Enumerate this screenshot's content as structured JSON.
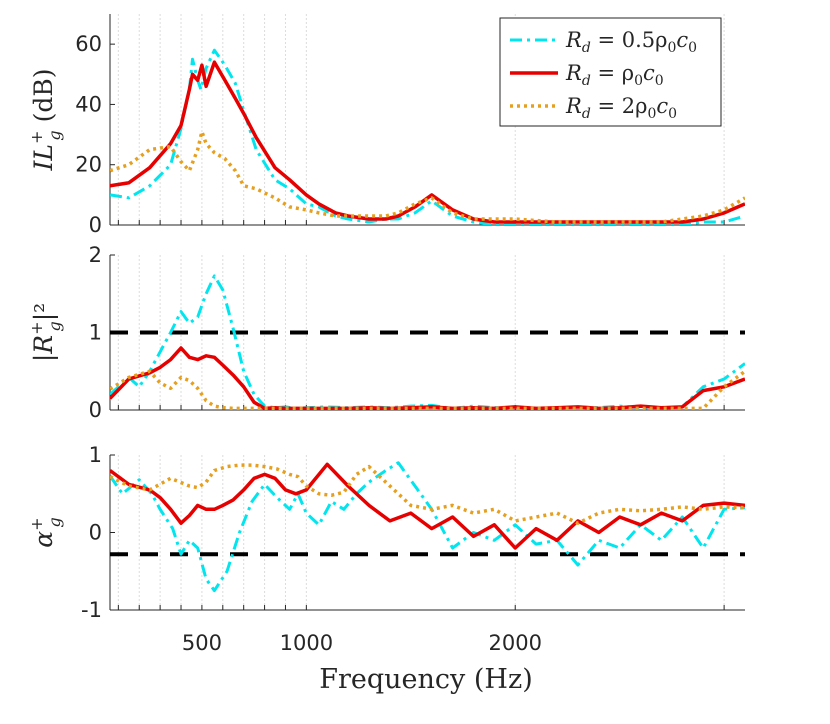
{
  "chart_data": [
    {
      "type": "line",
      "panel": "top",
      "ylabel": {
        "main": "IL",
        "sup": "+",
        "sub": "g",
        "tail": " (dB)"
      },
      "ylim": [
        0,
        70
      ],
      "yticks": [
        0,
        20,
        40,
        60
      ],
      "xlim": [
        60,
        3100
      ],
      "grid": true,
      "legend": {
        "placement": "top-right",
        "entries": [
          {
            "series": 0,
            "pre": "R",
            "sub": "d",
            "post": " = 0.5ρ",
            "sub2": "0",
            "post2": "c",
            "sub3": "0"
          },
          {
            "series": 1,
            "pre": "R",
            "sub": "d",
            "post": " = ρ",
            "sub2": "0",
            "post2": "c",
            "sub3": "0"
          },
          {
            "series": 2,
            "pre": "R",
            "sub": "d",
            "post": " = 2ρ",
            "sub2": "0",
            "post2": "c",
            "sub3": "0"
          }
        ]
      },
      "series": [
        {
          "x": [
            60,
            150,
            250,
            350,
            400,
            440,
            455,
            480,
            495,
            520,
            560,
            610,
            660,
            700,
            760,
            850,
            920,
            1000,
            1060,
            1140,
            1200,
            1300,
            1380,
            1440,
            1520,
            1600,
            1700,
            1800,
            1900,
            2000,
            2200,
            2300,
            2400,
            2500,
            2600,
            2700,
            2800,
            2900,
            3000,
            3100
          ],
          "y": [
            10,
            9,
            13,
            20,
            32,
            45,
            55,
            48,
            45,
            52,
            58,
            53,
            47,
            38,
            25,
            15,
            12,
            7,
            6,
            3,
            2,
            1,
            2,
            2,
            4,
            8,
            3,
            1,
            0,
            0,
            0,
            0,
            0,
            0,
            0,
            0,
            0,
            1,
            1,
            3
          ]
        },
        {
          "x": [
            60,
            150,
            250,
            350,
            400,
            440,
            455,
            480,
            500,
            520,
            560,
            610,
            660,
            700,
            760,
            850,
            920,
            1000,
            1060,
            1140,
            1200,
            1300,
            1380,
            1440,
            1520,
            1600,
            1700,
            1800,
            1900,
            2000,
            2200,
            2300,
            2400,
            2500,
            2600,
            2700,
            2800,
            2900,
            3000,
            3100
          ],
          "y": [
            13,
            14,
            19,
            27,
            33,
            45,
            50,
            48,
            53,
            46,
            54,
            48,
            42,
            37,
            29,
            19,
            15,
            10,
            7,
            4,
            3,
            2,
            2,
            3,
            6,
            10,
            5,
            2,
            1,
            1,
            1,
            1,
            1,
            1,
            1,
            1,
            1,
            2,
            4,
            7
          ]
        },
        {
          "x": [
            60,
            150,
            250,
            350,
            400,
            440,
            480,
            500,
            520,
            560,
            610,
            660,
            700,
            760,
            850,
            920,
            1000,
            1060,
            1140,
            1200,
            1300,
            1380,
            1440,
            1520,
            1600,
            1700,
            1800,
            1900,
            2000,
            2200,
            2300,
            2400,
            2500,
            2600,
            2700,
            2800,
            2900,
            3000,
            3100
          ],
          "y": [
            18,
            20,
            25,
            26,
            21,
            18,
            25,
            31,
            27,
            24,
            22,
            18,
            13,
            12,
            9,
            6,
            5,
            4,
            3,
            3,
            3,
            3,
            4,
            7,
            9,
            4,
            2,
            2,
            2,
            1,
            1,
            1,
            1,
            1,
            1,
            2,
            3,
            5,
            9
          ]
        }
      ]
    },
    {
      "type": "line",
      "panel": "middle",
      "ylabel": {
        "main": "|R",
        "sup": "+",
        "sub": "g",
        "tail": "|²"
      },
      "ylim": [
        0,
        2
      ],
      "yticks": [
        0,
        1,
        2
      ],
      "xlim": [
        60,
        3100
      ],
      "grid": true,
      "reference_line": 1,
      "series": [
        {
          "x": [
            60,
            150,
            200,
            250,
            300,
            350,
            400,
            440,
            480,
            520,
            560,
            600,
            650,
            700,
            750,
            800,
            850,
            900,
            950,
            1000,
            1100,
            1200,
            1300,
            1400,
            1500,
            1600,
            1700,
            1800,
            1900,
            2000,
            2100,
            2200,
            2300,
            2400,
            2500,
            2600,
            2700,
            2800,
            2900,
            3000,
            3100
          ],
          "y": [
            0.2,
            0.42,
            0.3,
            0.5,
            0.75,
            1.0,
            1.27,
            1.12,
            1.2,
            1.5,
            1.73,
            1.55,
            1.05,
            0.5,
            0.2,
            0.05,
            0.03,
            0.04,
            0.02,
            0.03,
            0.04,
            0.03,
            0.04,
            0.03,
            0.05,
            0.06,
            0.02,
            0.05,
            0.03,
            0.04,
            0.02,
            0.03,
            0.04,
            0.03,
            0.05,
            0.03,
            0.02,
            0.04,
            0.3,
            0.4,
            0.6
          ]
        },
        {
          "x": [
            60,
            150,
            250,
            300,
            350,
            400,
            440,
            480,
            520,
            560,
            600,
            650,
            700,
            750,
            800,
            850,
            900,
            1000,
            1100,
            1200,
            1300,
            1400,
            1500,
            1600,
            1700,
            1800,
            1900,
            2000,
            2100,
            2200,
            2300,
            2400,
            2500,
            2600,
            2700,
            2800,
            2900,
            3000,
            3100
          ],
          "y": [
            0.15,
            0.4,
            0.48,
            0.55,
            0.65,
            0.8,
            0.68,
            0.65,
            0.7,
            0.68,
            0.58,
            0.45,
            0.3,
            0.1,
            0.02,
            0.03,
            0.02,
            0.02,
            0.02,
            0.02,
            0.03,
            0.02,
            0.03,
            0.04,
            0.02,
            0.03,
            0.02,
            0.04,
            0.02,
            0.03,
            0.04,
            0.02,
            0.03,
            0.05,
            0.03,
            0.04,
            0.25,
            0.3,
            0.4
          ]
        },
        {
          "x": [
            60,
            150,
            250,
            300,
            350,
            400,
            440,
            480,
            520,
            560,
            600,
            650,
            700,
            750,
            800,
            900,
            1000,
            1100,
            1200,
            1300,
            1400,
            1500,
            1600,
            1700,
            1800,
            1900,
            2000,
            2100,
            2200,
            2300,
            2400,
            2500,
            2600,
            2700,
            2800,
            2900,
            3000,
            3100
          ],
          "y": [
            0.27,
            0.42,
            0.5,
            0.35,
            0.28,
            0.42,
            0.38,
            0.28,
            0.12,
            0.05,
            0.03,
            0.02,
            0.02,
            0.02,
            0.02,
            0.02,
            0.02,
            0.02,
            0.02,
            0.02,
            0.02,
            0.02,
            0.02,
            0.02,
            0.02,
            0.02,
            0.02,
            0.02,
            0.02,
            0.02,
            0.02,
            0.02,
            0.02,
            0.02,
            0.02,
            0.02,
            0.3,
            0.5
          ]
        }
      ]
    },
    {
      "type": "line",
      "panel": "bottom",
      "ylabel": {
        "main": "α",
        "sup": "+",
        "sub": "g",
        "tail": ""
      },
      "ylim": [
        -1,
        1
      ],
      "yticks": [
        -1,
        0,
        1
      ],
      "xlim": [
        60,
        3100
      ],
      "grid": true,
      "reference_line": -0.28,
      "series": [
        {
          "x": [
            60,
            120,
            200,
            260,
            300,
            360,
            400,
            440,
            480,
            520,
            560,
            620,
            680,
            740,
            800,
            860,
            920,
            960,
            1000,
            1060,
            1120,
            1180,
            1240,
            1300,
            1380,
            1440,
            1520,
            1600,
            1700,
            1800,
            1900,
            2000,
            2100,
            2200,
            2300,
            2400,
            2500,
            2600,
            2700,
            2800,
            2900,
            3000,
            3100
          ],
          "y": [
            0.73,
            0.5,
            0.68,
            0.5,
            0.3,
            0.05,
            -0.28,
            -0.1,
            -0.2,
            -0.6,
            -0.75,
            -0.5,
            0.0,
            0.4,
            0.62,
            0.45,
            0.3,
            0.5,
            0.25,
            0.1,
            0.4,
            0.3,
            0.5,
            0.65,
            0.8,
            0.9,
            0.6,
            0.3,
            -0.2,
            0.0,
            -0.1,
            0.1,
            -0.15,
            -0.1,
            -0.42,
            -0.1,
            -0.2,
            0.1,
            -0.1,
            0.2,
            -0.2,
            0.3,
            0.32
          ]
        },
        {
          "x": [
            60,
            150,
            250,
            300,
            350,
            400,
            440,
            480,
            520,
            560,
            600,
            650,
            700,
            750,
            800,
            850,
            900,
            950,
            1000,
            1100,
            1200,
            1300,
            1400,
            1500,
            1600,
            1700,
            1800,
            1900,
            2000,
            2100,
            2200,
            2300,
            2400,
            2500,
            2600,
            2700,
            2800,
            2900,
            3000,
            3100
          ],
          "y": [
            0.8,
            0.62,
            0.55,
            0.45,
            0.3,
            0.12,
            0.22,
            0.35,
            0.3,
            0.3,
            0.35,
            0.42,
            0.55,
            0.7,
            0.75,
            0.7,
            0.55,
            0.5,
            0.55,
            0.88,
            0.6,
            0.35,
            0.15,
            0.25,
            0.05,
            0.2,
            -0.05,
            0.1,
            -0.2,
            0.05,
            -0.1,
            0.15,
            0.0,
            0.2,
            0.1,
            0.25,
            0.15,
            0.35,
            0.38,
            0.35
          ]
        },
        {
          "x": [
            60,
            150,
            250,
            350,
            440,
            480,
            520,
            560,
            620,
            680,
            740,
            800,
            860,
            920,
            960,
            1000,
            1060,
            1120,
            1180,
            1240,
            1300,
            1400,
            1500,
            1600,
            1700,
            1800,
            1900,
            2000,
            2100,
            2200,
            2300,
            2400,
            2500,
            2600,
            2700,
            2800,
            2900,
            3000,
            3100
          ],
          "y": [
            0.72,
            0.6,
            0.55,
            0.7,
            0.6,
            0.58,
            0.65,
            0.8,
            0.85,
            0.87,
            0.87,
            0.85,
            0.82,
            0.75,
            0.72,
            0.6,
            0.5,
            0.48,
            0.52,
            0.75,
            0.85,
            0.6,
            0.35,
            0.3,
            0.35,
            0.25,
            0.3,
            0.15,
            0.2,
            0.25,
            0.12,
            0.25,
            0.3,
            0.28,
            0.3,
            0.33,
            0.3,
            0.33,
            0.32
          ]
        }
      ]
    }
  ],
  "xaxis": {
    "label": "Frequency (Hz)",
    "ticks": [
      500,
      1000,
      2000
    ],
    "minor_ticks": [
      100,
      200,
      300,
      400,
      600,
      700,
      800,
      900,
      3000
    ],
    "xlim": [
      60,
      3100
    ]
  },
  "series_styles": [
    {
      "color": "#00e5ee",
      "dash": "12 5 3 5",
      "width": 3
    },
    {
      "color": "#e60000",
      "dash": "",
      "width": 3.5
    },
    {
      "color": "#e6a020",
      "dash": "3 4",
      "width": 3.5
    }
  ],
  "reference_line_style": {
    "color": "#000000",
    "dash": "18 12",
    "width": 4
  }
}
